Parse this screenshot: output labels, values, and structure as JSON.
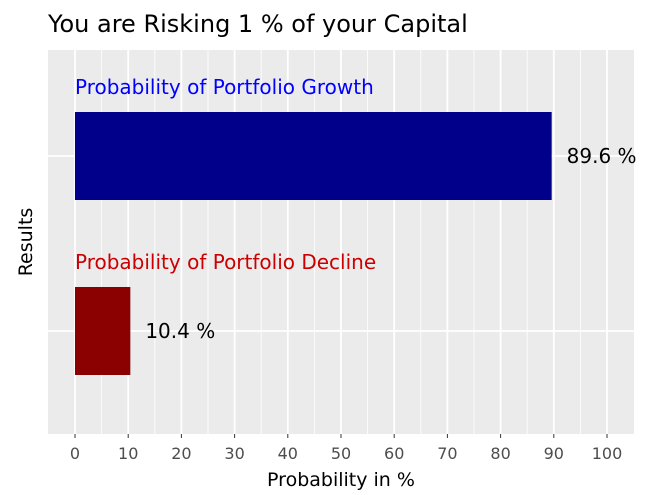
{
  "chart_data": {
    "type": "bar",
    "orientation": "horizontal",
    "title": "You are Risking 1 % of your Capital",
    "xlabel": "Probability in %",
    "ylabel": "Results",
    "xlim": [
      0,
      100
    ],
    "xticks": [
      "0",
      "10",
      "20",
      "30",
      "40",
      "50",
      "60",
      "70",
      "80",
      "90",
      "100"
    ],
    "grid": true,
    "categories": [
      "Probability of Portfolio Growth",
      "Probability of Portfolio Decline"
    ],
    "values": [
      89.6,
      10.4
    ],
    "data_labels": [
      "89.6 %",
      "10.4 %"
    ],
    "bar_colors": [
      "#00008b",
      "#8b0000"
    ],
    "category_label_colors": [
      "#0000ff",
      "#cc0000"
    ],
    "panel_background": "#ebebeb",
    "grid_color": "#ffffff"
  }
}
